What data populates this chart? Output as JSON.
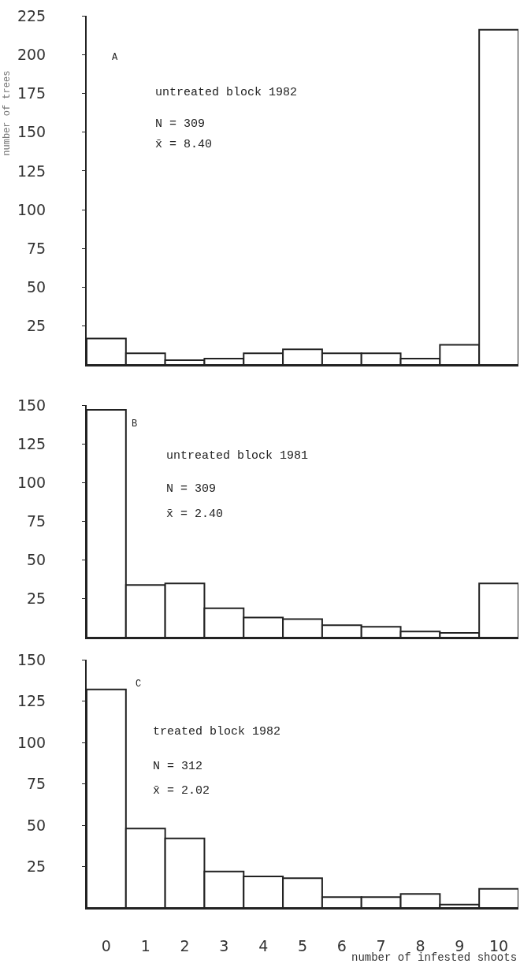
{
  "chart_data": [
    {
      "type": "bar",
      "ylabel": "number of trees",
      "categories": [
        "0",
        "1",
        "2",
        "3",
        "4",
        "5",
        "6",
        "7",
        "8",
        "9",
        "10"
      ],
      "values": [
        17,
        7.5,
        3,
        4,
        7.5,
        10,
        7.5,
        7.5,
        4,
        13,
        216
      ],
      "color": "#ffffff",
      "ylim": [
        0,
        225
      ],
      "yticks": [
        25,
        50,
        75,
        100,
        125,
        150,
        175,
        200,
        225
      ],
      "grid": false,
      "tick_labels": "y",
      "annotations": [
        "A",
        "untreated block 1982",
        "N = 309",
        "x̄ = 8.40"
      ]
    },
    {
      "type": "bar",
      "categories": [
        "0",
        "1",
        "2",
        "3",
        "4",
        "5",
        "6",
        "7",
        "8",
        "9",
        "10"
      ],
      "values": [
        147,
        34,
        35,
        19,
        13,
        12,
        8,
        7,
        4,
        3,
        35
      ],
      "color": "#ffffff",
      "ylim": [
        0,
        150
      ],
      "yticks": [
        25,
        50,
        75,
        100,
        125,
        150
      ],
      "grid": false,
      "tick_labels": "y",
      "annotations": [
        "B",
        "untreated block 1981",
        "N = 309",
        "x̄ = 2.40"
      ]
    },
    {
      "type": "bar",
      "xlabel": "number of infested shoots",
      "categories": [
        "0",
        "1",
        "2",
        "3",
        "4",
        "5",
        "6",
        "7",
        "8",
        "9",
        "10"
      ],
      "values": [
        132,
        48,
        42,
        22,
        19,
        18,
        6.5,
        6.5,
        8.5,
        2,
        11.5
      ],
      "color": "#ffffff",
      "ylim": [
        0,
        150
      ],
      "yticks": [
        25,
        50,
        75,
        100,
        125,
        150
      ],
      "grid": false,
      "annotations": [
        "C",
        "treated block 1982",
        "N = 312",
        "x̄ = 2.02"
      ]
    }
  ]
}
